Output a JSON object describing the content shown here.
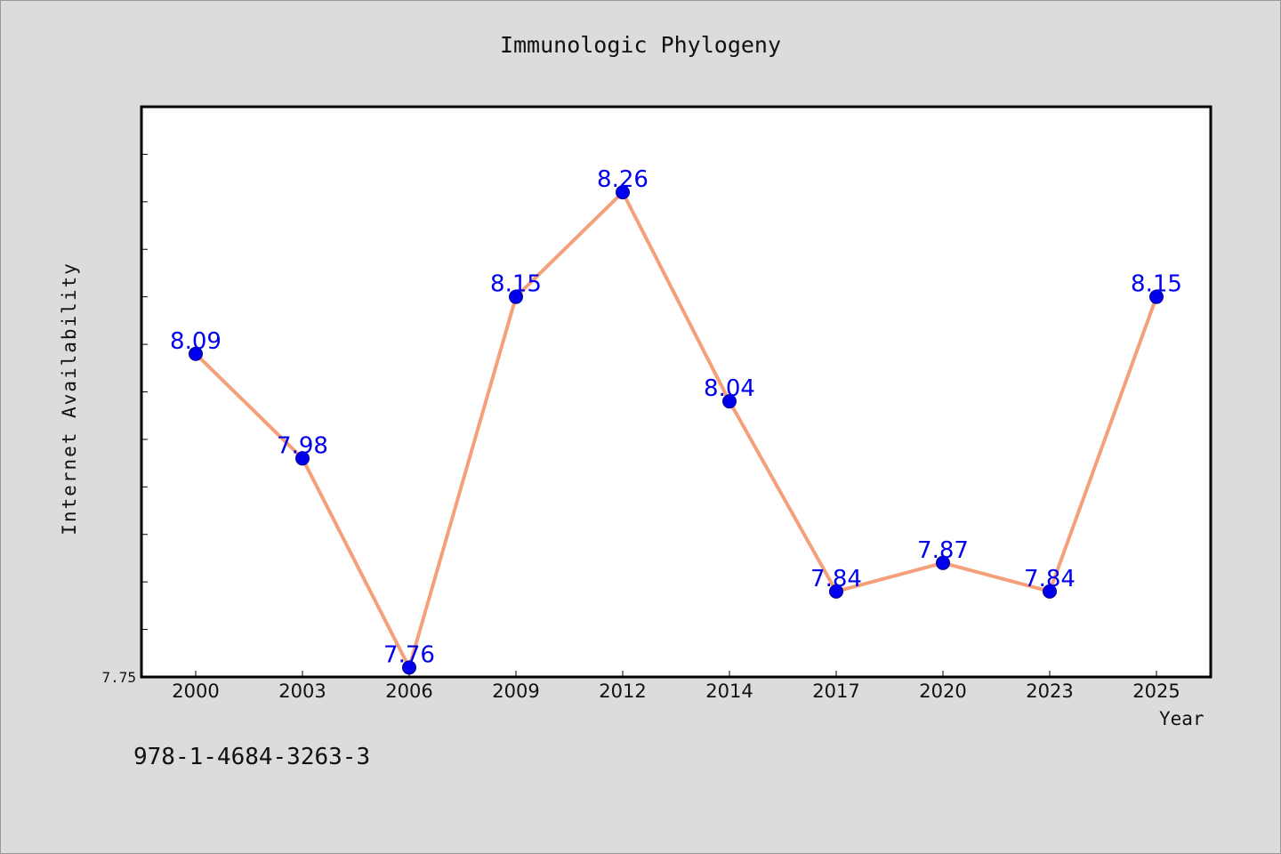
{
  "chart_data": {
    "type": "line",
    "title": "Immunologic Phylogeny",
    "xlabel": "Year",
    "ylabel": "Internet Availability",
    "categories": [
      "2000",
      "2003",
      "2006",
      "2009",
      "2012",
      "2014",
      "2017",
      "2020",
      "2023",
      "2025"
    ],
    "series": [
      {
        "values": [
          8.09,
          7.98,
          7.76,
          8.15,
          8.26,
          8.04,
          7.84,
          7.87,
          7.84,
          8.15
        ],
        "data_labels": [
          "8.09",
          "7.98",
          "7.76",
          "8.15",
          "8.26",
          "8.04",
          "7.84",
          "7.87",
          "7.84",
          "8.15"
        ]
      }
    ],
    "y_tick_label": "7.75",
    "ylim": [
      7.75,
      8.35
    ],
    "y_minor_tick_step": 0.05,
    "grid": false,
    "colors": {
      "line": "#f4a07a",
      "marker": "#0000ee",
      "data_label": "#0000ee",
      "plot_background": "#ffffff",
      "page_background": "#dcdcdc"
    }
  },
  "footer": {
    "isbn": "978-1-4684-3263-3"
  }
}
